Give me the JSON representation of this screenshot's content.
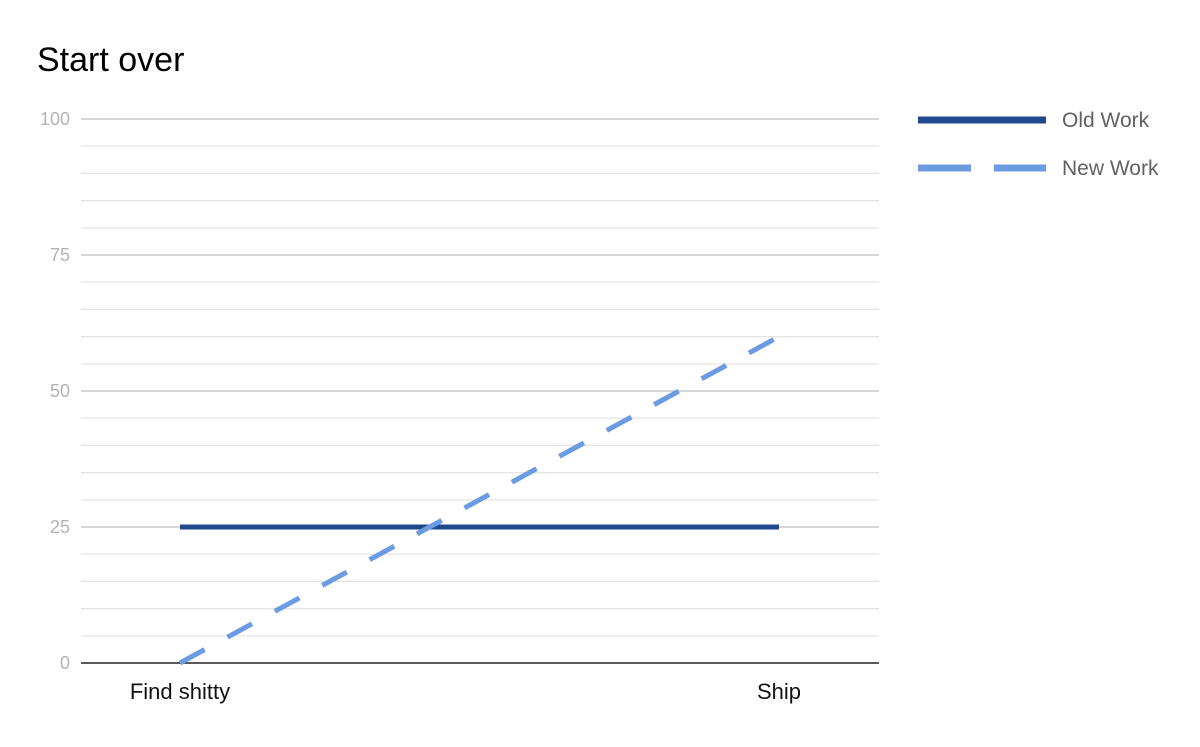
{
  "colors": {
    "background": "#ffffff",
    "grid_major": "#c8c8c8",
    "grid_minor": "#e3e3e3",
    "axis": "#222222",
    "old_work": "#1f4a8c",
    "new_work": "#6b9be3"
  },
  "chart_data": {
    "type": "line",
    "title": "Start over",
    "xlabel": "",
    "ylabel": "",
    "categories": [
      "Find shitty",
      "Ship"
    ],
    "ylim": [
      0,
      100
    ],
    "y_ticks": [
      0,
      25,
      50,
      75,
      100
    ],
    "grid": true,
    "legend_position": "right",
    "series": [
      {
        "name": "Old Work",
        "values": [
          25,
          25
        ],
        "color": "#1f4a8c",
        "dashed": false
      },
      {
        "name": "New Work",
        "values": [
          0,
          60
        ],
        "color": "#6b9be3",
        "dashed": true
      }
    ]
  }
}
